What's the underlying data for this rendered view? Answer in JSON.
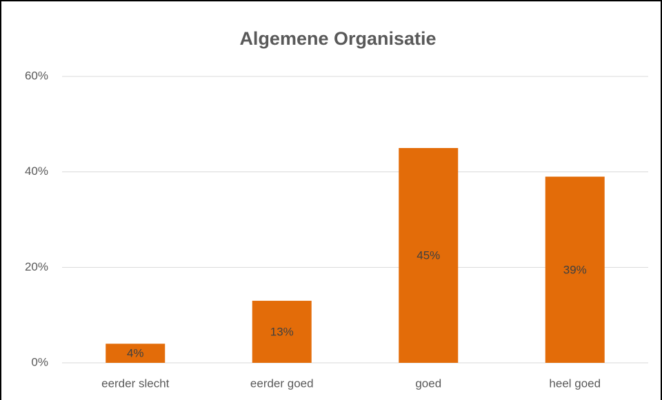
{
  "chart_data": {
    "type": "bar",
    "title": "Algemene Organisatie",
    "categories": [
      "eerder slecht",
      "eerder goed",
      "goed",
      "heel goed"
    ],
    "values": [
      4,
      13,
      45,
      39
    ],
    "value_labels": [
      "4%",
      "13%",
      "45%",
      "39%"
    ],
    "color": "#e36c09",
    "ylim": [
      0,
      60
    ],
    "yticks": [
      {
        "value": 0,
        "label": "0%"
      },
      {
        "value": 20,
        "label": "20%"
      },
      {
        "value": 40,
        "label": "40%"
      },
      {
        "value": 60,
        "label": "60%"
      }
    ],
    "grid": true
  }
}
